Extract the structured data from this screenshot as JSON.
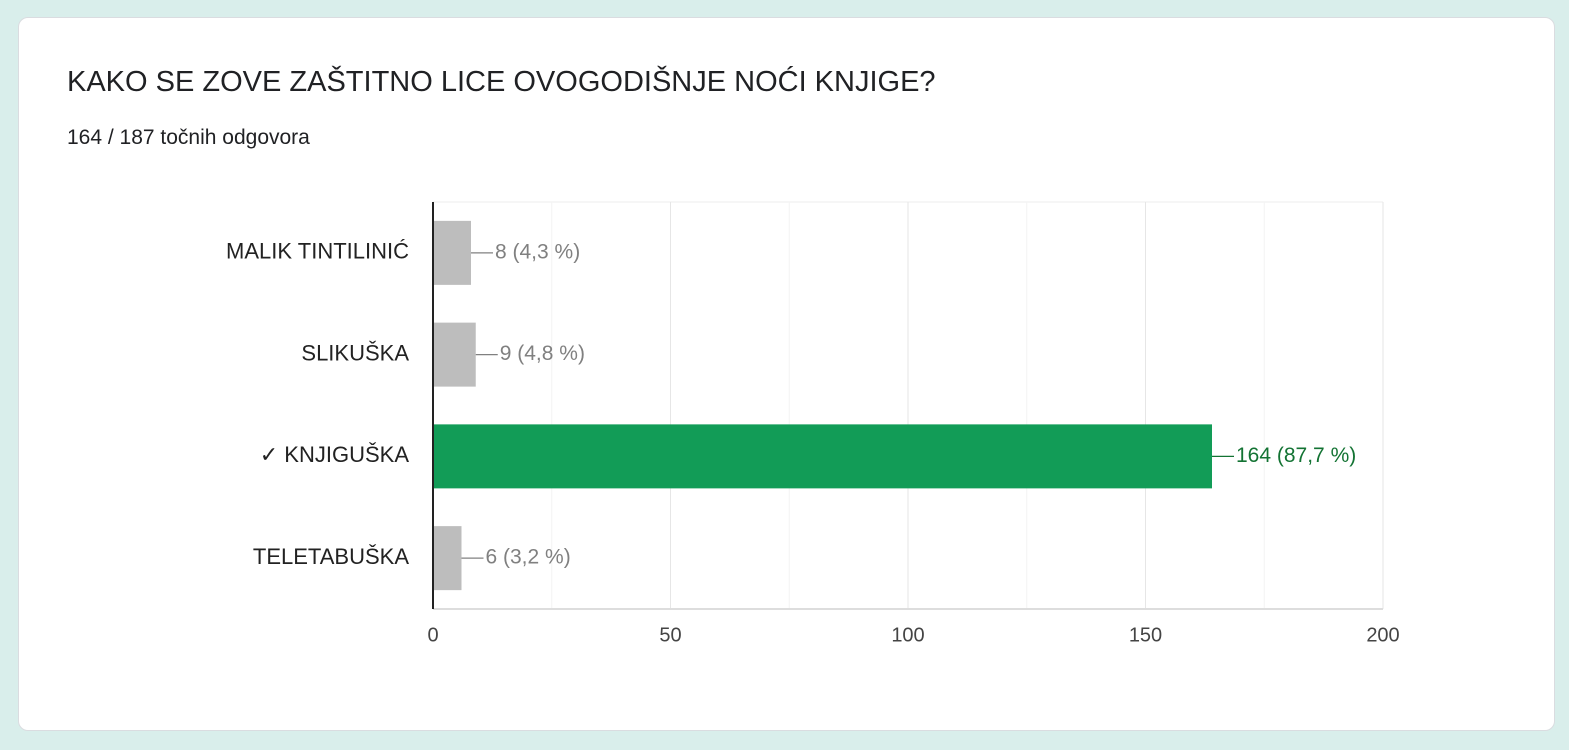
{
  "chart_data": {
    "type": "bar",
    "orientation": "horizontal",
    "title": "KAKO SE ZOVE ZAŠTITNO LICE OVOGODIŠNJE NOĆI KNJIGE?",
    "subtitle": "164 / 187 točnih odgovora",
    "categories": [
      "MALIK TINTILINIĆ",
      "SLIKUŠKA",
      "✓ KNJIGUŠKA",
      "TELETABUŠKA"
    ],
    "values": [
      8,
      9,
      164,
      6
    ],
    "value_labels": [
      "8 (4,3 %)",
      "9 (4,8 %)",
      "164 (87,7 %)",
      "6 (3,2 %)"
    ],
    "colors": [
      "#bdbdbd",
      "#bdbdbd",
      "#129c57",
      "#bdbdbd"
    ],
    "label_colors": [
      "#808080",
      "#808080",
      "#137333",
      "#808080"
    ],
    "xlim": [
      0,
      200
    ],
    "xticks": [
      0,
      50,
      100,
      150,
      200
    ],
    "grid": true
  }
}
